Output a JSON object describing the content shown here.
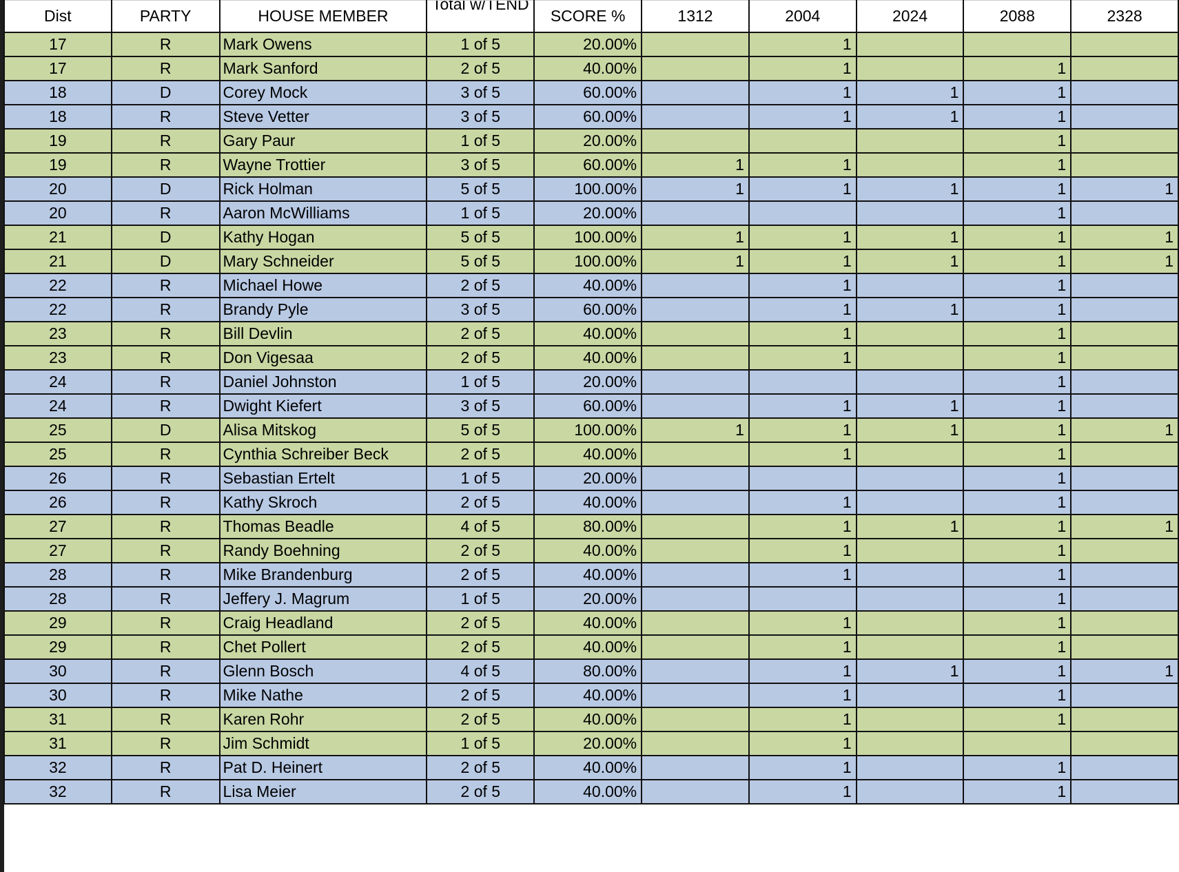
{
  "colors": {
    "odd_district_row": "#c9d7a3",
    "even_district_row": "#b8c9e4"
  },
  "headers": [
    "Dist",
    "PARTY",
    "HOUSE MEMBER",
    "Total w/TEND",
    "SCORE %",
    "1312",
    "2004",
    "2024",
    "2088",
    "2328"
  ],
  "rows": [
    {
      "dist": "17",
      "party": "R",
      "member": "Mark Owens",
      "total": "1 of 5",
      "score": "20.00%",
      "votes": [
        "",
        "1",
        "",
        "",
        ""
      ]
    },
    {
      "dist": "17",
      "party": "R",
      "member": "Mark Sanford",
      "total": "2 of 5",
      "score": "40.00%",
      "votes": [
        "",
        "1",
        "",
        "1",
        ""
      ]
    },
    {
      "dist": "18",
      "party": "D",
      "member": "Corey Mock",
      "total": "3 of 5",
      "score": "60.00%",
      "votes": [
        "",
        "1",
        "1",
        "1",
        ""
      ]
    },
    {
      "dist": "18",
      "party": "R",
      "member": "Steve Vetter",
      "total": "3 of 5",
      "score": "60.00%",
      "votes": [
        "",
        "1",
        "1",
        "1",
        ""
      ]
    },
    {
      "dist": "19",
      "party": "R",
      "member": "Gary Paur",
      "total": "1 of 5",
      "score": "20.00%",
      "votes": [
        "",
        "",
        "",
        "1",
        ""
      ]
    },
    {
      "dist": "19",
      "party": "R",
      "member": "Wayne Trottier",
      "total": "3 of 5",
      "score": "60.00%",
      "votes": [
        "1",
        "1",
        "",
        "1",
        ""
      ]
    },
    {
      "dist": "20",
      "party": "D",
      "member": "Rick Holman",
      "total": "5 of 5",
      "score": "100.00%",
      "votes": [
        "1",
        "1",
        "1",
        "1",
        "1"
      ]
    },
    {
      "dist": "20",
      "party": "R",
      "member": "Aaron McWilliams",
      "total": "1 of 5",
      "score": "20.00%",
      "votes": [
        "",
        "",
        "",
        "1",
        ""
      ]
    },
    {
      "dist": "21",
      "party": "D",
      "member": "Kathy Hogan",
      "total": "5 of 5",
      "score": "100.00%",
      "votes": [
        "1",
        "1",
        "1",
        "1",
        "1"
      ]
    },
    {
      "dist": "21",
      "party": "D",
      "member": "Mary Schneider",
      "total": "5 of 5",
      "score": "100.00%",
      "votes": [
        "1",
        "1",
        "1",
        "1",
        "1"
      ]
    },
    {
      "dist": "22",
      "party": "R",
      "member": "Michael Howe",
      "total": "2 of 5",
      "score": "40.00%",
      "votes": [
        "",
        "1",
        "",
        "1",
        ""
      ]
    },
    {
      "dist": "22",
      "party": "R",
      "member": "Brandy Pyle",
      "total": "3 of 5",
      "score": "60.00%",
      "votes": [
        "",
        "1",
        "1",
        "1",
        ""
      ]
    },
    {
      "dist": "23",
      "party": "R",
      "member": "Bill Devlin",
      "total": "2 of 5",
      "score": "40.00%",
      "votes": [
        "",
        "1",
        "",
        "1",
        ""
      ]
    },
    {
      "dist": "23",
      "party": "R",
      "member": "Don Vigesaa",
      "total": "2 of 5",
      "score": "40.00%",
      "votes": [
        "",
        "1",
        "",
        "1",
        ""
      ]
    },
    {
      "dist": "24",
      "party": "R",
      "member": "Daniel Johnston",
      "total": "1 of 5",
      "score": "20.00%",
      "votes": [
        "",
        "",
        "",
        "1",
        ""
      ]
    },
    {
      "dist": "24",
      "party": "R",
      "member": "Dwight Kiefert",
      "total": "3 of 5",
      "score": "60.00%",
      "votes": [
        "",
        "1",
        "1",
        "1",
        ""
      ]
    },
    {
      "dist": "25",
      "party": "D",
      "member": "Alisa Mitskog",
      "total": "5 of 5",
      "score": "100.00%",
      "votes": [
        "1",
        "1",
        "1",
        "1",
        "1"
      ]
    },
    {
      "dist": "25",
      "party": "R",
      "member": "Cynthia Schreiber Beck",
      "total": "2 of 5",
      "score": "40.00%",
      "votes": [
        "",
        "1",
        "",
        "1",
        ""
      ]
    },
    {
      "dist": "26",
      "party": "R",
      "member": "Sebastian Ertelt",
      "total": "1 of 5",
      "score": "20.00%",
      "votes": [
        "",
        "",
        "",
        "1",
        ""
      ]
    },
    {
      "dist": "26",
      "party": "R",
      "member": "Kathy Skroch",
      "total": "2 of 5",
      "score": "40.00%",
      "votes": [
        "",
        "1",
        "",
        "1",
        ""
      ]
    },
    {
      "dist": "27",
      "party": "R",
      "member": "Thomas Beadle",
      "total": "4 of 5",
      "score": "80.00%",
      "votes": [
        "",
        "1",
        "1",
        "1",
        "1"
      ]
    },
    {
      "dist": "27",
      "party": "R",
      "member": "Randy Boehning",
      "total": "2 of 5",
      "score": "40.00%",
      "votes": [
        "",
        "1",
        "",
        "1",
        ""
      ]
    },
    {
      "dist": "28",
      "party": "R",
      "member": "Mike Brandenburg",
      "total": "2 of 5",
      "score": "40.00%",
      "votes": [
        "",
        "1",
        "",
        "1",
        ""
      ]
    },
    {
      "dist": "28",
      "party": "R",
      "member": "Jeffery J. Magrum",
      "total": "1 of 5",
      "score": "20.00%",
      "votes": [
        "",
        "",
        "",
        "1",
        ""
      ]
    },
    {
      "dist": "29",
      "party": "R",
      "member": "Craig Headland",
      "total": "2 of 5",
      "score": "40.00%",
      "votes": [
        "",
        "1",
        "",
        "1",
        ""
      ]
    },
    {
      "dist": "29",
      "party": "R",
      "member": "Chet Pollert",
      "total": "2 of 5",
      "score": "40.00%",
      "votes": [
        "",
        "1",
        "",
        "1",
        ""
      ]
    },
    {
      "dist": "30",
      "party": "R",
      "member": "Glenn Bosch",
      "total": "4 of 5",
      "score": "80.00%",
      "votes": [
        "",
        "1",
        "1",
        "1",
        "1"
      ]
    },
    {
      "dist": "30",
      "party": "R",
      "member": "Mike Nathe",
      "total": "2 of 5",
      "score": "40.00%",
      "votes": [
        "",
        "1",
        "",
        "1",
        ""
      ]
    },
    {
      "dist": "31",
      "party": "R",
      "member": "Karen Rohr",
      "total": "2 of 5",
      "score": "40.00%",
      "votes": [
        "",
        "1",
        "",
        "1",
        ""
      ]
    },
    {
      "dist": "31",
      "party": "R",
      "member": "Jim Schmidt",
      "total": "1 of 5",
      "score": "20.00%",
      "votes": [
        "",
        "1",
        "",
        "",
        ""
      ]
    },
    {
      "dist": "32",
      "party": "R",
      "member": "Pat D. Heinert",
      "total": "2 of 5",
      "score": "40.00%",
      "votes": [
        "",
        "1",
        "",
        "1",
        ""
      ]
    },
    {
      "dist": "32",
      "party": "R",
      "member": "Lisa Meier",
      "total": "2 of 5",
      "score": "40.00%",
      "votes": [
        "",
        "1",
        "",
        "1",
        ""
      ]
    }
  ]
}
